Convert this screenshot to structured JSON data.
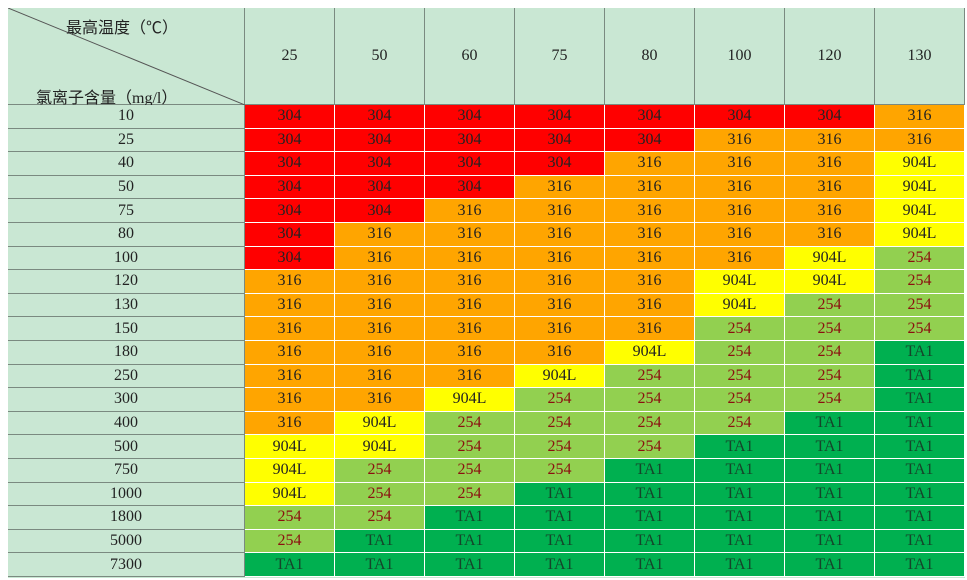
{
  "table": {
    "corner": {
      "top_label": "最高温度（℃）",
      "bottom_label": "氯离子含量（mg/l）"
    },
    "columns": [
      "25",
      "50",
      "60",
      "75",
      "80",
      "100",
      "120",
      "130"
    ],
    "row_headers": [
      "10",
      "25",
      "40",
      "50",
      "75",
      "80",
      "100",
      "120",
      "130",
      "150",
      "180",
      "250",
      "300",
      "400",
      "500",
      "750",
      "1000",
      "1800",
      "5000",
      "7300"
    ],
    "rows": [
      [
        "304",
        "304",
        "304",
        "304",
        "304",
        "304",
        "304",
        "316"
      ],
      [
        "304",
        "304",
        "304",
        "304",
        "304",
        "316",
        "316",
        "316"
      ],
      [
        "304",
        "304",
        "304",
        "304",
        "316",
        "316",
        "316",
        "904L"
      ],
      [
        "304",
        "304",
        "304",
        "316",
        "316",
        "316",
        "316",
        "904L"
      ],
      [
        "304",
        "304",
        "316",
        "316",
        "316",
        "316",
        "316",
        "904L"
      ],
      [
        "304",
        "316",
        "316",
        "316",
        "316",
        "316",
        "316",
        "904L"
      ],
      [
        "304",
        "316",
        "316",
        "316",
        "316",
        "316",
        "904L",
        "254"
      ],
      [
        "316",
        "316",
        "316",
        "316",
        "316",
        "904L",
        "904L",
        "254"
      ],
      [
        "316",
        "316",
        "316",
        "316",
        "316",
        "904L",
        "254",
        "254"
      ],
      [
        "316",
        "316",
        "316",
        "316",
        "316",
        "254",
        "254",
        "254"
      ],
      [
        "316",
        "316",
        "316",
        "316",
        "904L",
        "254",
        "254",
        "TA1"
      ],
      [
        "316",
        "316",
        "316",
        "904L",
        "254",
        "254",
        "254",
        "TA1"
      ],
      [
        "316",
        "316",
        "904L",
        "254",
        "254",
        "254",
        "254",
        "TA1"
      ],
      [
        "316",
        "904L",
        "254",
        "254",
        "254",
        "254",
        "TA1",
        "TA1"
      ],
      [
        "904L",
        "904L",
        "254",
        "254",
        "254",
        "TA1",
        "TA1",
        "TA1"
      ],
      [
        "904L",
        "254",
        "254",
        "254",
        "TA1",
        "TA1",
        "TA1",
        "TA1"
      ],
      [
        "904L",
        "254",
        "254",
        "TA1",
        "TA1",
        "TA1",
        "TA1",
        "TA1"
      ],
      [
        "254",
        "254",
        "TA1",
        "TA1",
        "TA1",
        "TA1",
        "TA1",
        "TA1"
      ],
      [
        "254",
        "TA1",
        "TA1",
        "TA1",
        "TA1",
        "TA1",
        "TA1",
        "TA1"
      ],
      [
        "TA1",
        "TA1",
        "TA1",
        "TA1",
        "TA1",
        "TA1",
        "TA1",
        "TA1"
      ]
    ],
    "material_colors": {
      "304": "#ff0000",
      "316": "#ffa500",
      "904L": "#ffff00",
      "254": "#92d050",
      "TA1": "#00b050"
    }
  }
}
